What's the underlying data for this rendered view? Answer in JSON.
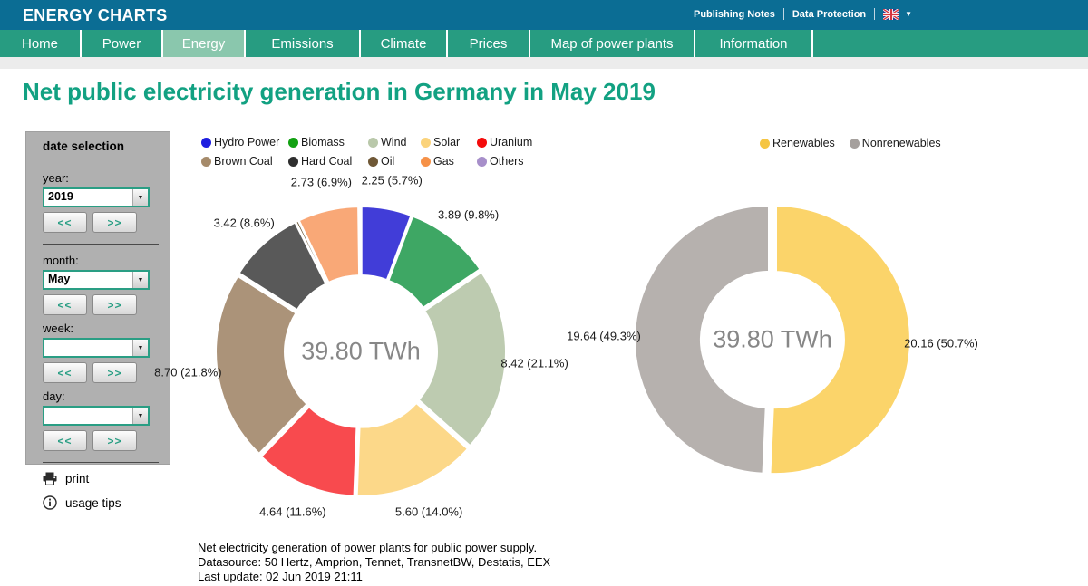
{
  "header": {
    "brand": "ENERGY CHARTS",
    "links": [
      {
        "label": "Publishing Notes"
      },
      {
        "label": "Data Protection"
      }
    ],
    "language_flag": "uk-flag",
    "caret": "▼"
  },
  "nav": {
    "items": [
      {
        "label": "Home",
        "active": false
      },
      {
        "label": "Power",
        "active": false
      },
      {
        "label": "Energy",
        "active": true
      },
      {
        "label": "Emissions",
        "active": false
      },
      {
        "label": "Climate",
        "active": false
      },
      {
        "label": "Prices",
        "active": false
      },
      {
        "label": "Map of power plants",
        "active": false
      },
      {
        "label": "Information",
        "active": false
      }
    ]
  },
  "page_title": "Net public electricity generation in Germany in May 2019",
  "sidebar": {
    "title": "date selection",
    "prev": "<<",
    "next": ">>",
    "fields": [
      {
        "label": "year:",
        "value": "2019"
      },
      {
        "label": "month:",
        "value": "May"
      },
      {
        "label": "week:",
        "value": ""
      },
      {
        "label": "day:",
        "value": ""
      }
    ],
    "actions": [
      {
        "icon": "print-icon",
        "label": "print"
      },
      {
        "icon": "info-icon",
        "label": "usage tips"
      }
    ]
  },
  "chart_data": [
    {
      "type": "pie",
      "subtype": "donut",
      "title": "Net public electricity generation by source",
      "unit": "TWh",
      "total": 39.8,
      "center_label": "39.80 TWh",
      "legend_position": "top",
      "series": [
        {
          "name": "Hydro Power",
          "value": 2.25,
          "percent": 5.7,
          "label": "2.25 (5.7%)",
          "color": "#413dd8",
          "legend_color": "#1e1ee0"
        },
        {
          "name": "Biomass",
          "value": 3.89,
          "percent": 9.8,
          "label": "3.89 (9.8%)",
          "color": "#3ea764",
          "legend_color": "#12a112"
        },
        {
          "name": "Wind",
          "value": 8.42,
          "percent": 21.1,
          "label": "8.42 (21.1%)",
          "color": "#bdcbb0",
          "legend_color": "#b9c8aa"
        },
        {
          "name": "Solar",
          "value": 5.6,
          "percent": 14.0,
          "label": "5.60 (14.0%)",
          "color": "#fcd889",
          "legend_color": "#fbd37b"
        },
        {
          "name": "Uranium",
          "value": 4.64,
          "percent": 11.6,
          "label": "4.64 (11.6%)",
          "color": "#f84a4e",
          "legend_color": "#f40b0b"
        },
        {
          "name": "Brown Coal",
          "value": 8.7,
          "percent": 21.8,
          "label": "8.70 (21.8%)",
          "color": "#ab9379",
          "legend_color": "#a58a6a"
        },
        {
          "name": "Hard Coal",
          "value": 3.42,
          "percent": 8.6,
          "label": "3.42 (8.6%)",
          "color": "#595959",
          "legend_color": "#2e2e2e"
        },
        {
          "name": "Oil",
          "value": 0.1,
          "percent": 0.3,
          "estimated": true,
          "color": "#6f5836",
          "legend_color": "#6f5836"
        },
        {
          "name": "Gas",
          "value": 2.73,
          "percent": 6.9,
          "label": "2.73 (6.9%)",
          "color": "#f9a877",
          "legend_color": "#f69147"
        },
        {
          "name": "Others",
          "value": 0.05,
          "percent": 0.2,
          "estimated": true,
          "color": "#a78fca",
          "legend_color": "#a78fca"
        }
      ]
    },
    {
      "type": "pie",
      "subtype": "donut",
      "title": "Renewable vs nonrenewable share",
      "unit": "TWh",
      "total": 39.8,
      "center_label": "39.80 TWh",
      "legend_position": "top",
      "series": [
        {
          "name": "Renewables",
          "value": 20.16,
          "percent": 50.7,
          "label": "20.16 (50.7%)",
          "color": "#fbd46a",
          "legend_color": "#f5c542"
        },
        {
          "name": "Nonrenewables",
          "value": 19.64,
          "percent": 49.3,
          "label": "19.64 (49.3%)",
          "color": "#b6b1ae",
          "legend_color": "#a5a09d"
        }
      ]
    }
  ],
  "footer": {
    "lines": [
      "Net electricity generation of power plants for public power supply.",
      "Datasource: 50 Hertz, Amprion, Tennet, TransnetBW, Destatis, EEX",
      "Last update: 02 Jun 2019 21:11"
    ]
  }
}
